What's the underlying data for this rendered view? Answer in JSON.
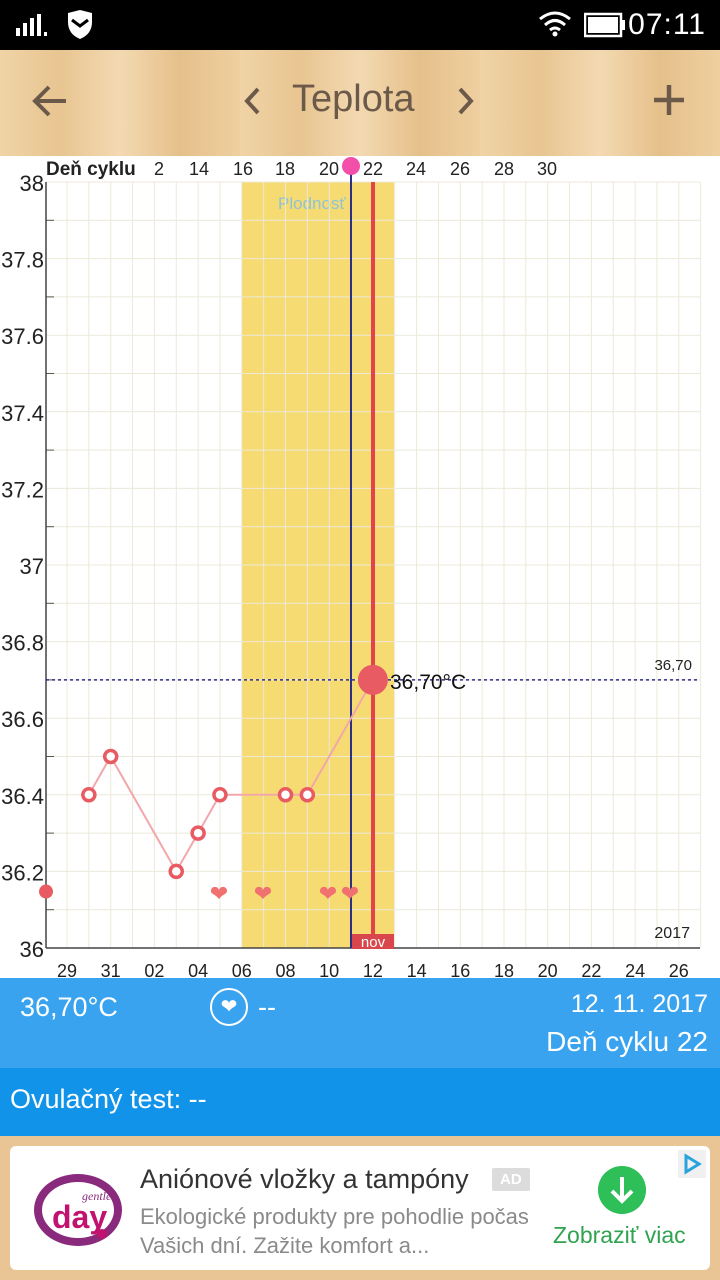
{
  "statusbar": {
    "time": "07:11"
  },
  "appbar": {
    "title": "Teplota"
  },
  "chart": {
    "cycle_label": "Deň cyklu",
    "cycle_ticks": [
      "2",
      "14",
      "16",
      "18",
      "20",
      "22",
      "24",
      "26",
      "28",
      "30"
    ],
    "y_ticks": [
      "38",
      "37.8",
      "37.6",
      "37.4",
      "37.2",
      "37",
      "36.8",
      "36.6",
      "36.4",
      "36.2",
      "36"
    ],
    "date_ticks": [
      "29",
      "31",
      "02",
      "04",
      "06",
      "08",
      "10",
      "12",
      "14",
      "16",
      "18",
      "20",
      "22",
      "24",
      "26"
    ],
    "fertile_label": "Plodnosť",
    "current_label": "36,70°C",
    "line_label": "36,70",
    "year": "2017",
    "month": "nov"
  },
  "chart_data": {
    "type": "line",
    "ylim": [
      36,
      38
    ],
    "x": [
      "29",
      "30",
      "31",
      "03",
      "04",
      "05",
      "08",
      "09",
      "12"
    ],
    "series": [
      {
        "values": [
          36.15,
          36.4,
          36.5,
          36.2,
          36.3,
          36.4,
          36.4,
          36.4,
          36.7
        ]
      }
    ]
  },
  "info": {
    "temp": "36,70°C",
    "mood": "--",
    "date": "12. 11. 2017",
    "cycle": "Deň cyklu 22"
  },
  "ovulation": {
    "text": "Ovulačný test: --"
  },
  "ad": {
    "headline": "Aniónové vložky a tampóny",
    "badge": "AD",
    "desc": "Ekologické produkty pre pohodlie počas Vašich dní. Zažite komfort a...",
    "cta": "Zobraziť viac",
    "logo_small": "gentle",
    "logo_big": "day"
  },
  "colors": {
    "accent_blue": "#3aa3ef",
    "ov_blue": "#1193ea",
    "fertile": "#f6da72",
    "point": "#e85b63"
  }
}
